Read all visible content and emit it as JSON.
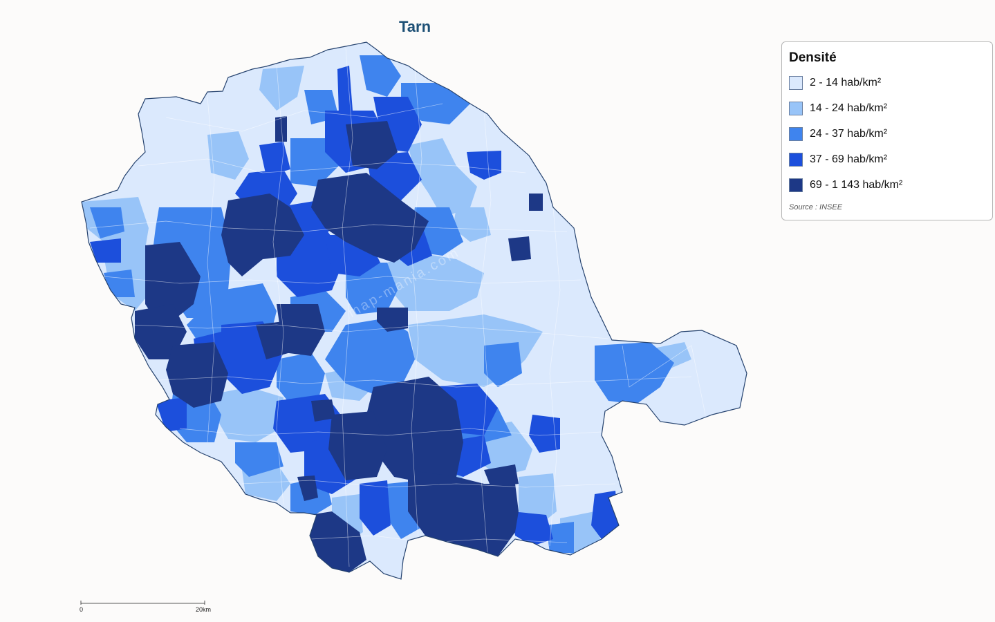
{
  "title": "Tarn",
  "legend": {
    "title": "Densité",
    "classes": [
      {
        "label": "2 - 14 hab/km²",
        "color": "#dbe9fd"
      },
      {
        "label": "14 - 24 hab/km²",
        "color": "#98c4f8"
      },
      {
        "label": "24 - 37 hab/km²",
        "color": "#3f84ee"
      },
      {
        "label": "37 - 69 hab/km²",
        "color": "#1c4fdc"
      },
      {
        "label": "69 - 1 143 hab/km²",
        "color": "#1d3886"
      }
    ],
    "source": "Source : INSEE"
  },
  "scale": {
    "start": "0",
    "end": "20km"
  },
  "watermark": "map-mania.com",
  "colors": {
    "background": "#fcfbfa",
    "title": "#1c4f75",
    "border": "#25426e"
  }
}
